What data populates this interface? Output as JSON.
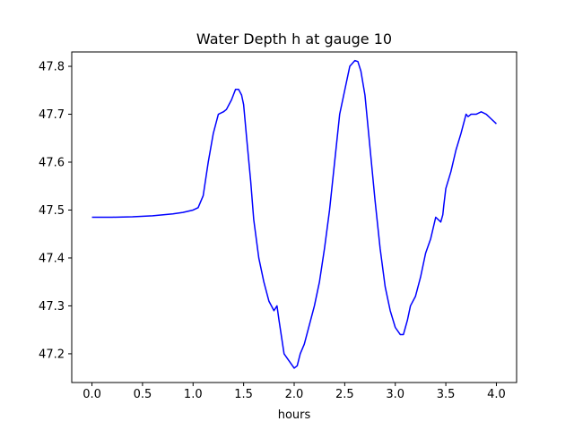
{
  "chart_data": {
    "type": "line",
    "title": "Water Depth h at gauge 10",
    "xlabel": "hours",
    "ylabel": "",
    "xlim": [
      -0.2,
      4.2
    ],
    "ylim": [
      47.14,
      47.83
    ],
    "xticks": [
      0.0,
      0.5,
      1.0,
      1.5,
      2.0,
      2.5,
      3.0,
      3.5,
      4.0
    ],
    "xtick_labels": [
      "0.0",
      "0.5",
      "1.0",
      "1.5",
      "2.0",
      "2.5",
      "3.0",
      "3.5",
      "4.0"
    ],
    "yticks": [
      47.2,
      47.3,
      47.4,
      47.5,
      47.6,
      47.7,
      47.8
    ],
    "ytick_labels": [
      "47.2",
      "47.3",
      "47.4",
      "47.5",
      "47.6",
      "47.7",
      "47.8"
    ],
    "grid": false,
    "series": [
      {
        "color": "#0000ff",
        "x": [
          0.0,
          0.2,
          0.4,
          0.6,
          0.8,
          0.9,
          1.0,
          1.05,
          1.1,
          1.15,
          1.2,
          1.25,
          1.3,
          1.33,
          1.38,
          1.42,
          1.45,
          1.48,
          1.5,
          1.53,
          1.57,
          1.6,
          1.65,
          1.7,
          1.75,
          1.8,
          1.83,
          1.85,
          1.9,
          1.95,
          2.0,
          2.03,
          2.06,
          2.1,
          2.15,
          2.2,
          2.25,
          2.3,
          2.35,
          2.4,
          2.45,
          2.5,
          2.55,
          2.6,
          2.63,
          2.66,
          2.7,
          2.75,
          2.8,
          2.85,
          2.9,
          2.95,
          3.0,
          3.05,
          3.08,
          3.1,
          3.12,
          3.15,
          3.2,
          3.25,
          3.3,
          3.35,
          3.4,
          3.45,
          3.47,
          3.48,
          3.5,
          3.55,
          3.6,
          3.65,
          3.7,
          3.72,
          3.75,
          3.8,
          3.85,
          3.9,
          3.95,
          4.0
        ],
        "y": [
          47.485,
          47.485,
          47.486,
          47.488,
          47.492,
          47.495,
          47.5,
          47.505,
          47.53,
          47.6,
          47.66,
          47.7,
          47.705,
          47.71,
          47.73,
          47.752,
          47.752,
          47.74,
          47.72,
          47.65,
          47.56,
          47.48,
          47.4,
          47.35,
          47.31,
          47.29,
          47.3,
          47.27,
          47.2,
          47.185,
          47.17,
          47.175,
          47.2,
          47.22,
          47.26,
          47.3,
          47.35,
          47.42,
          47.5,
          47.6,
          47.7,
          47.75,
          47.8,
          47.812,
          47.81,
          47.79,
          47.74,
          47.63,
          47.52,
          47.42,
          47.34,
          47.29,
          47.255,
          47.24,
          47.24,
          47.255,
          47.27,
          47.3,
          47.32,
          47.36,
          47.41,
          47.44,
          47.485,
          47.475,
          47.49,
          47.51,
          47.545,
          47.58,
          47.625,
          47.66,
          47.7,
          47.695,
          47.7,
          47.7,
          47.705,
          47.7,
          47.69,
          47.68
        ]
      }
    ]
  }
}
